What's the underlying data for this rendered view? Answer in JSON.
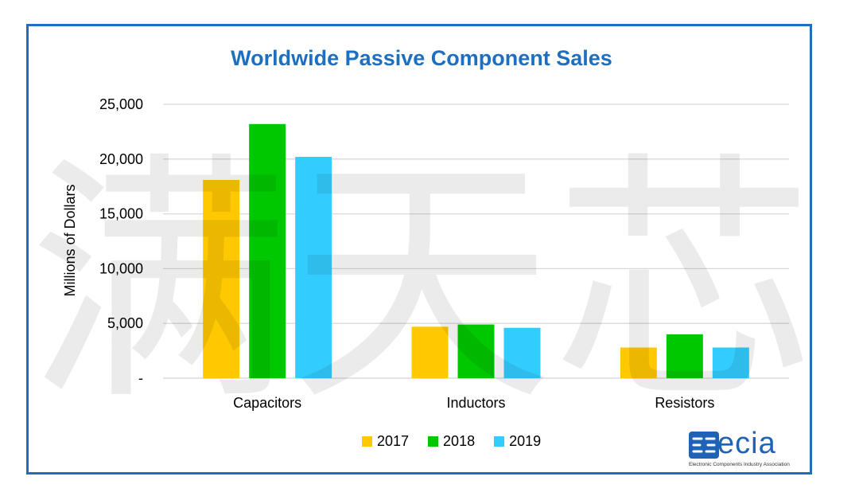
{
  "chart_data": {
    "type": "bar",
    "title": "Worldwide Passive Component Sales",
    "xlabel": "",
    "ylabel": "Millions of Dollars",
    "ylim": [
      0,
      25000
    ],
    "yticks": [
      0,
      5000,
      10000,
      15000,
      20000,
      25000
    ],
    "ytick_labels": [
      "-",
      "5,000",
      "10,000",
      "15,000",
      "20,000",
      "25,000"
    ],
    "categories": [
      "Capacitors",
      "Inductors",
      "Resistors"
    ],
    "series": [
      {
        "name": "2017",
        "color": "#ffc800",
        "values": [
          18100,
          4700,
          2800
        ]
      },
      {
        "name": "2018",
        "color": "#00c800",
        "values": [
          23200,
          4900,
          4000
        ]
      },
      {
        "name": "2019",
        "color": "#33ccff",
        "values": [
          20200,
          4600,
          2800
        ]
      }
    ],
    "grid": true,
    "legend_position": "bottom"
  },
  "logo": {
    "word": "ecia",
    "tagline": "Electronic Components Industry Association"
  },
  "watermark": {
    "text": "满天芯"
  }
}
